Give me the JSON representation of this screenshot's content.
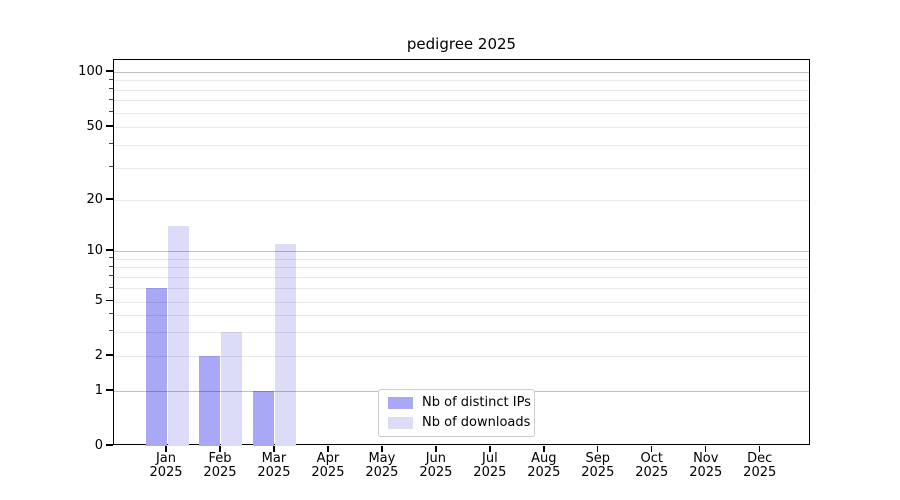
{
  "chart_data": {
    "type": "bar",
    "title": "pedigree 2025",
    "year": "2025",
    "categories": [
      "Jan",
      "Feb",
      "Mar",
      "Apr",
      "May",
      "Jun",
      "Jul",
      "Aug",
      "Sep",
      "Oct",
      "Nov",
      "Dec"
    ],
    "series": [
      {
        "name": "Nb of distinct IPs",
        "color": "#a8a8f7",
        "values": [
          6,
          2,
          1,
          0,
          0,
          0,
          0,
          0,
          0,
          0,
          0,
          0
        ]
      },
      {
        "name": "Nb of downloads",
        "color": "#dcdcf9",
        "values": [
          14,
          3,
          11,
          0,
          0,
          0,
          0,
          0,
          0,
          0,
          0,
          0
        ]
      }
    ],
    "yaxis": {
      "scale": "log-like",
      "tick_labels": [
        0,
        1,
        2,
        5,
        10,
        20,
        50,
        100
      ],
      "major_gridlines": [
        1,
        10,
        100
      ],
      "minor_gridlines": [
        2,
        3,
        4,
        5,
        6,
        7,
        8,
        9,
        20,
        30,
        40,
        50,
        60,
        70,
        80,
        90
      ],
      "ylim": [
        0,
        116
      ]
    },
    "xlabel": "",
    "ylabel": "",
    "grid": true,
    "legend_position": "lower center",
    "colors": {
      "axis": "#000000",
      "grid_major": "#c2c2c2",
      "grid_minor": "#e9e9e9"
    }
  }
}
